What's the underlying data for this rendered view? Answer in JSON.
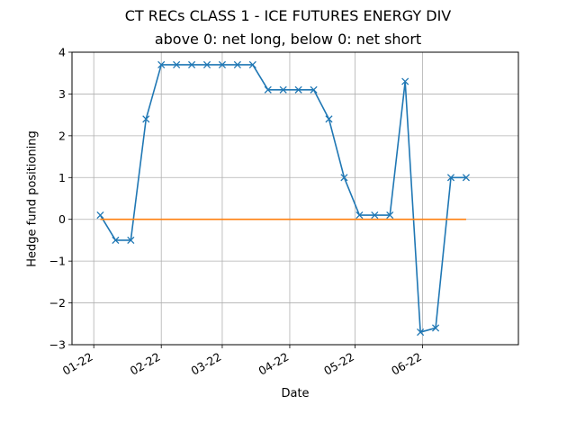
{
  "chart_data": {
    "type": "line",
    "title": "CT RECs CLASS 1 - ICE FUTURES ENERGY DIV",
    "subtitle": "above 0: net long, below 0: net short",
    "xlabel": "Date",
    "ylabel": "Hedge fund positioning",
    "ylim": [
      -3,
      4
    ],
    "xlim": [
      "2021-12-22",
      "2022-07-15"
    ],
    "grid": true,
    "x_ticks": [
      {
        "date": "2022-01-01",
        "label": "01-22"
      },
      {
        "date": "2022-02-01",
        "label": "02-22"
      },
      {
        "date": "2022-03-01",
        "label": "03-22"
      },
      {
        "date": "2022-04-01",
        "label": "04-22"
      },
      {
        "date": "2022-05-01",
        "label": "05-22"
      },
      {
        "date": "2022-06-01",
        "label": "06-22"
      }
    ],
    "y_ticks": [
      -3,
      -2,
      -1,
      0,
      1,
      2,
      3,
      4
    ],
    "y_tick_labels": [
      "−3",
      "−2",
      "−1",
      "0",
      "1",
      "2",
      "3",
      "4"
    ],
    "x": [
      "2022-01-04",
      "2022-01-11",
      "2022-01-18",
      "2022-01-25",
      "2022-02-01",
      "2022-02-08",
      "2022-02-15",
      "2022-02-22",
      "2022-03-01",
      "2022-03-08",
      "2022-03-15",
      "2022-03-22",
      "2022-03-29",
      "2022-04-05",
      "2022-04-12",
      "2022-04-19",
      "2022-04-26",
      "2022-05-03",
      "2022-05-10",
      "2022-05-17",
      "2022-05-24",
      "2022-05-31",
      "2022-06-07",
      "2022-06-14",
      "2022-06-21"
    ],
    "series": [
      {
        "color": "#1f77b4",
        "marker": "x",
        "values": [
          0.1,
          -0.5,
          -0.5,
          2.4,
          3.7,
          3.7,
          3.7,
          3.7,
          3.7,
          3.7,
          3.7,
          3.1,
          3.1,
          3.1,
          3.1,
          2.4,
          1.0,
          0.1,
          0.1,
          0.1,
          3.3,
          -2.7,
          -2.6,
          1.0,
          1.0
        ]
      },
      {
        "color": "#ff7f0e",
        "marker": "none",
        "values": [
          0,
          0,
          0,
          0,
          0,
          0,
          0,
          0,
          0,
          0,
          0,
          0,
          0,
          0,
          0,
          0,
          0,
          0,
          0,
          0,
          0,
          0,
          0,
          0,
          0
        ]
      }
    ]
  }
}
